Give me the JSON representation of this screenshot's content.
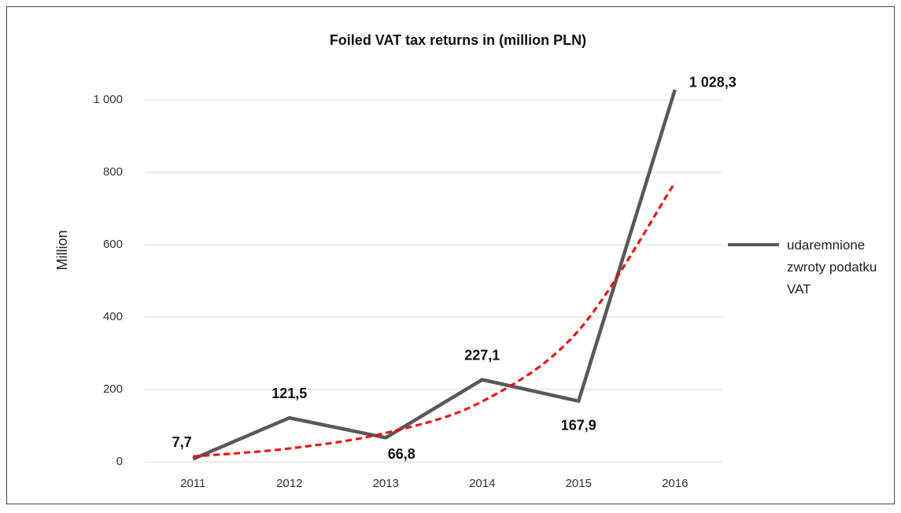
{
  "chart_data": {
    "type": "line",
    "title": "Foiled VAT tax returns in (million PLN)",
    "y_label": "Million",
    "categories": [
      "2011",
      "2012",
      "2013",
      "2014",
      "2015",
      "2016"
    ],
    "series": [
      {
        "name": "udaremnione zwroty podatku VAT",
        "color": "#595959",
        "values": [
          7.7,
          121.5,
          66.8,
          227.1,
          167.9,
          1028.3
        ],
        "value_labels": [
          "7,7",
          "121,5",
          "66,8",
          "227,1",
          "167,9",
          "1 028,3"
        ]
      }
    ],
    "trendline": {
      "color": "#ff0000",
      "values": [
        15,
        37,
        80,
        167,
        363,
        772
      ]
    },
    "ylim": [
      0,
      1000
    ],
    "yticks": [
      0,
      200,
      400,
      600,
      800,
      {
        "value": 1000,
        "label": "1 000"
      }
    ],
    "grid": true,
    "legend": "right"
  }
}
